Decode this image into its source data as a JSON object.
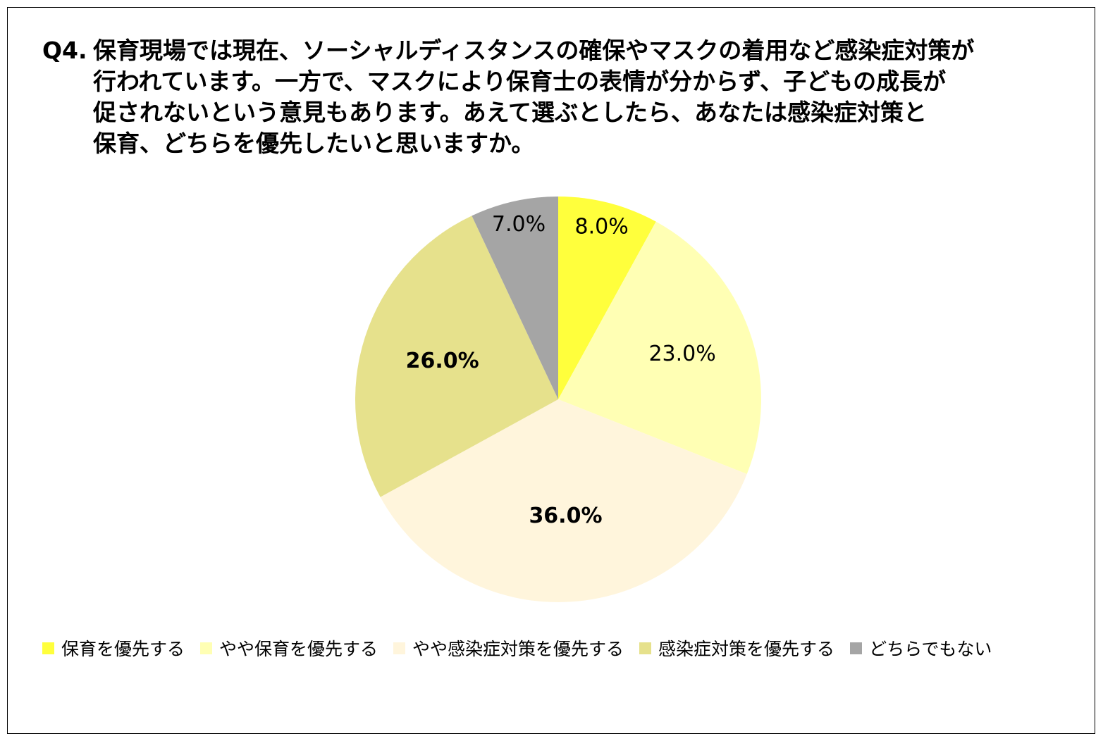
{
  "title_lines": [
    "保育現場では現在、ソーシャルディスタンスの確保やマスクの着用など感染症対策が",
    "行われています。一方で、マスクにより保育士の表情が分からず、子どもの成長が",
    "促されないという意見もあります。あえて選ぶとしたら、あなたは感染症対策と",
    "保育、どちらを優先したいと思いますか。"
  ],
  "title_number": "Q4.",
  "chart_data": {
    "type": "pie",
    "start_angle": "12 o'clock",
    "direction": "clockwise",
    "slices": [
      {
        "name": "保育を優先する",
        "value": 8.0,
        "label": "8.0%",
        "color": "#FFFF3C",
        "label_bold": false
      },
      {
        "name": "やや保育を優先する",
        "value": 23.0,
        "label": "23.0%",
        "color": "#FFFFB4",
        "label_bold": false
      },
      {
        "name": "やや感染症対策を優先する",
        "value": 36.0,
        "label": "36.0%",
        "color": "#FFF5DC",
        "label_bold": true
      },
      {
        "name": "感染症対策を優先する",
        "value": 26.0,
        "label": "26.0%",
        "color": "#E6E18C",
        "label_bold": true
      },
      {
        "name": "どちらでもない",
        "value": 7.0,
        "label": "7.0%",
        "color": "#A5A5A5",
        "label_bold": false
      }
    ],
    "legend_position": "bottom"
  }
}
